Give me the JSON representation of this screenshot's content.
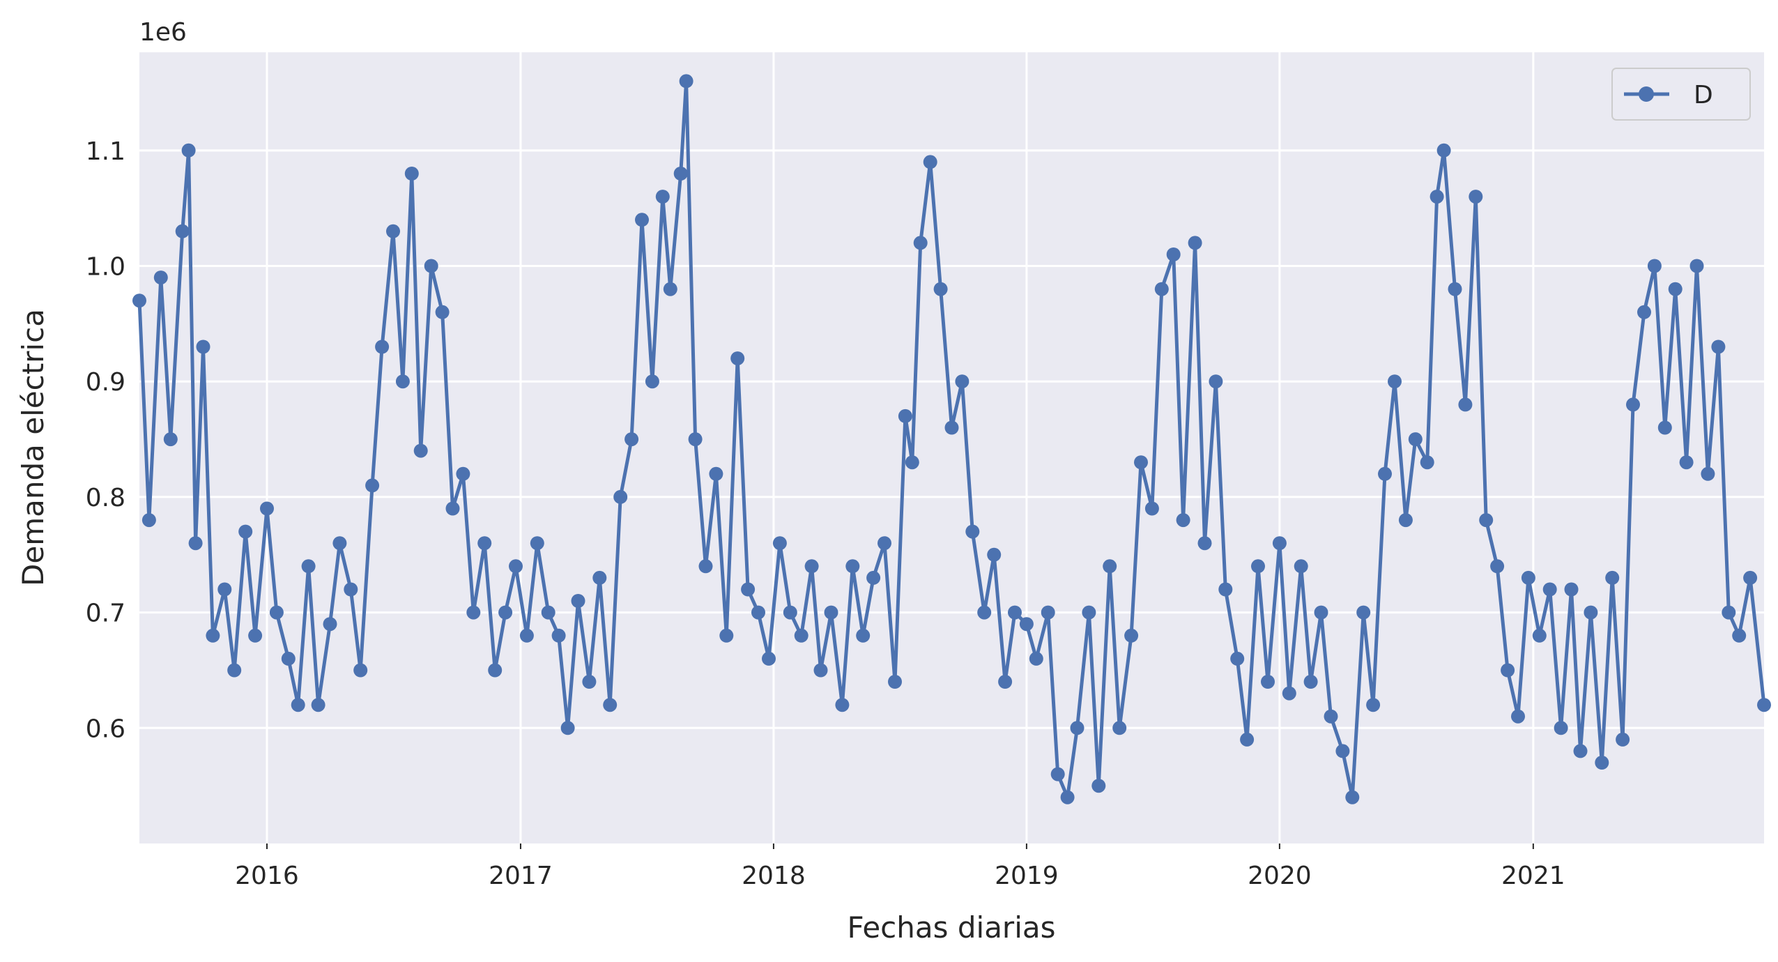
{
  "chart_data": {
    "type": "line",
    "xlabel": "Fechas diarias",
    "ylabel": "Demanda eléctrica",
    "offset_label": "1e6",
    "x_range": [
      "2015-07-01",
      "2021-11-30"
    ],
    "ylim": [
      500000,
      1185000
    ],
    "x_ticks": [
      "2016-01-01",
      "2017-01-01",
      "2018-01-01",
      "2019-01-01",
      "2020-01-01",
      "2021-01-01"
    ],
    "x_tick_labels": [
      "2016",
      "2017",
      "2018",
      "2019",
      "2020",
      "2021"
    ],
    "y_ticks": [
      600000,
      700000,
      800000,
      900000,
      1000000,
      1100000
    ],
    "y_tick_labels": [
      "0.6",
      "0.7",
      "0.8",
      "0.9",
      "1.0",
      "1.1"
    ],
    "grid": true,
    "legend": "top-right",
    "colors": {
      "series": "#4c72b0",
      "plot_bg": "#eaeaf2",
      "grid": "#ffffff"
    },
    "series": [
      {
        "name": "D",
        "marker": "circle",
        "x": [
          "2015-07-01",
          "2015-07-15",
          "2015-08-01",
          "2015-08-15",
          "2015-09-01",
          "2015-09-10",
          "2015-09-20",
          "2015-10-01",
          "2015-10-15",
          "2015-11-01",
          "2015-11-15",
          "2015-12-01",
          "2015-12-15",
          "2016-01-01",
          "2016-01-15",
          "2016-02-01",
          "2016-02-15",
          "2016-03-01",
          "2016-03-15",
          "2016-04-01",
          "2016-04-15",
          "2016-05-01",
          "2016-05-15",
          "2016-06-01",
          "2016-06-15",
          "2016-07-01",
          "2016-07-15",
          "2016-07-28",
          "2016-08-10",
          "2016-08-25",
          "2016-09-10",
          "2016-09-25",
          "2016-10-10",
          "2016-10-25",
          "2016-11-10",
          "2016-11-25",
          "2016-12-10",
          "2016-12-25",
          "2017-01-10",
          "2017-01-25",
          "2017-02-10",
          "2017-02-25",
          "2017-03-10",
          "2017-03-25",
          "2017-04-10",
          "2017-04-25",
          "2017-05-10",
          "2017-05-25",
          "2017-06-10",
          "2017-06-25",
          "2017-07-10",
          "2017-07-25",
          "2017-08-05",
          "2017-08-20",
          "2017-08-28",
          "2017-09-10",
          "2017-09-25",
          "2017-10-10",
          "2017-10-25",
          "2017-11-10",
          "2017-11-25",
          "2017-12-10",
          "2017-12-25",
          "2018-01-10",
          "2018-01-25",
          "2018-02-10",
          "2018-02-25",
          "2018-03-10",
          "2018-03-25",
          "2018-04-10",
          "2018-04-25",
          "2018-05-10",
          "2018-05-25",
          "2018-06-10",
          "2018-06-25",
          "2018-07-10",
          "2018-07-20",
          "2018-08-01",
          "2018-08-15",
          "2018-08-30",
          "2018-09-15",
          "2018-09-30",
          "2018-10-15",
          "2018-11-01",
          "2018-11-15",
          "2018-12-01",
          "2018-12-15",
          "2019-01-01",
          "2019-01-15",
          "2019-02-01",
          "2019-02-15",
          "2019-03-01",
          "2019-03-15",
          "2019-04-01",
          "2019-04-15",
          "2019-05-01",
          "2019-05-15",
          "2019-06-01",
          "2019-06-15",
          "2019-07-01",
          "2019-07-15",
          "2019-08-01",
          "2019-08-15",
          "2019-09-01",
          "2019-09-15",
          "2019-10-01",
          "2019-10-15",
          "2019-11-01",
          "2019-11-15",
          "2019-12-01",
          "2019-12-15",
          "2020-01-01",
          "2020-01-15",
          "2020-02-01",
          "2020-02-15",
          "2020-03-01",
          "2020-03-15",
          "2020-04-01",
          "2020-04-15",
          "2020-05-01",
          "2020-05-15",
          "2020-06-01",
          "2020-06-15",
          "2020-07-01",
          "2020-07-15",
          "2020-08-01",
          "2020-08-15",
          "2020-08-25",
          "2020-09-10",
          "2020-09-25",
          "2020-10-10",
          "2020-10-25",
          "2020-11-10",
          "2020-11-25",
          "2020-12-10",
          "2020-12-25",
          "2021-01-10",
          "2021-01-25",
          "2021-02-10",
          "2021-02-25",
          "2021-03-10",
          "2021-03-25",
          "2021-04-10",
          "2021-04-25",
          "2021-05-10",
          "2021-05-25",
          "2021-06-10",
          "2021-06-25",
          "2021-07-10",
          "2021-07-25",
          "2021-08-10",
          "2021-08-25",
          "2021-09-10",
          "2021-09-25",
          "2021-10-10",
          "2021-10-25",
          "2021-11-10",
          "2021-11-30"
        ],
        "values": [
          970000,
          780000,
          990000,
          850000,
          1030000,
          1100000,
          760000,
          930000,
          680000,
          720000,
          650000,
          770000,
          680000,
          790000,
          700000,
          660000,
          620000,
          740000,
          620000,
          690000,
          760000,
          720000,
          650000,
          810000,
          930000,
          1030000,
          900000,
          1080000,
          840000,
          1000000,
          960000,
          790000,
          820000,
          700000,
          760000,
          650000,
          700000,
          740000,
          680000,
          760000,
          700000,
          680000,
          600000,
          710000,
          640000,
          730000,
          620000,
          800000,
          850000,
          1040000,
          900000,
          1060000,
          980000,
          1080000,
          1160000,
          850000,
          740000,
          820000,
          680000,
          920000,
          720000,
          700000,
          660000,
          760000,
          700000,
          680000,
          740000,
          650000,
          700000,
          620000,
          740000,
          680000,
          730000,
          760000,
          640000,
          870000,
          830000,
          1020000,
          1090000,
          980000,
          860000,
          900000,
          770000,
          700000,
          750000,
          640000,
          700000,
          690000,
          660000,
          700000,
          560000,
          540000,
          600000,
          700000,
          550000,
          740000,
          600000,
          680000,
          830000,
          790000,
          980000,
          1010000,
          780000,
          1020000,
          760000,
          900000,
          720000,
          660000,
          590000,
          740000,
          640000,
          760000,
          630000,
          740000,
          640000,
          700000,
          610000,
          580000,
          540000,
          700000,
          620000,
          820000,
          900000,
          780000,
          850000,
          830000,
          1060000,
          1100000,
          980000,
          880000,
          1060000,
          780000,
          740000,
          650000,
          610000,
          730000,
          680000,
          720000,
          600000,
          720000,
          580000,
          700000,
          570000,
          730000,
          590000,
          880000,
          960000,
          1000000,
          860000,
          980000,
          830000,
          1000000,
          820000,
          930000,
          700000,
          680000,
          730000,
          620000
        ]
      }
    ]
  }
}
